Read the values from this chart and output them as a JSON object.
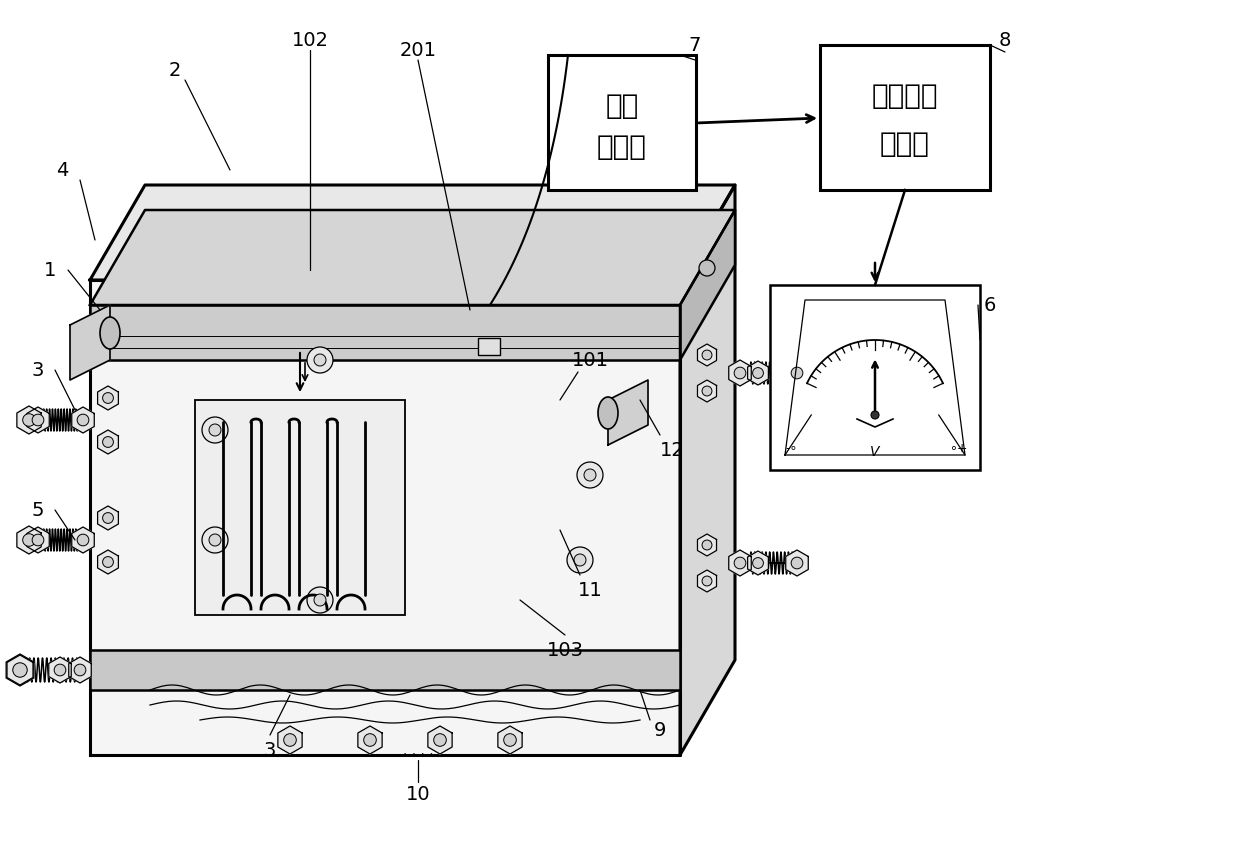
{
  "bg_color": "#ffffff",
  "line_color": "#000000",
  "label_color": "#000000",
  "box7_text_line1": "数显",
  "box7_text_line2": "温度计",
  "box8_text_line1": "综合数据",
  "box8_text_line2": "记录仪",
  "font_size_labels": 14,
  "font_size_boxes": 20,
  "font_size_meter": 9,
  "lw_main": 1.8,
  "lw_thin": 0.9,
  "lw_thick": 2.2
}
